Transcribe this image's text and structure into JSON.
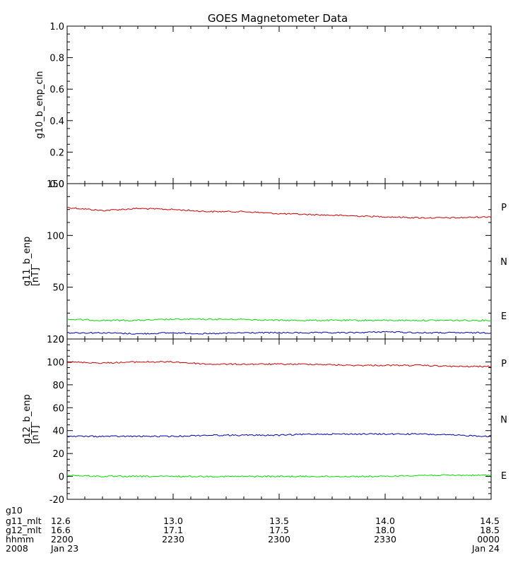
{
  "chart_data": {
    "title": "GOES Magnetometer Data",
    "type": "line",
    "panels": [
      {
        "ylabel": "g10_b_enp_cln",
        "yunit": "",
        "ylim": [
          0.0,
          1.0
        ],
        "yticks": [
          "0.0",
          "0.2",
          "0.4",
          "0.6",
          "0.8",
          "1.0"
        ],
        "series": []
      },
      {
        "ylabel": "g11_b_enp",
        "yunit": "[nT]",
        "ylim": [
          0,
          150
        ],
        "yticks": [
          "0",
          "50",
          "100",
          "150"
        ],
        "series": [
          {
            "name": "P",
            "color": "#cc0000",
            "x": [
              0,
              10,
              20,
              30,
              40,
              50,
              60,
              70,
              80,
              90,
              100,
              110,
              120
            ],
            "y": [
              127,
              124,
              126,
              125,
              123,
              123,
              121,
              120,
              119,
              118,
              117,
              117,
              118
            ]
          },
          {
            "name": "N",
            "color": "#00dd00",
            "x": [
              0,
              10,
              20,
              30,
              40,
              50,
              60,
              70,
              80,
              90,
              100,
              110,
              120
            ],
            "y": [
              19,
              18,
              18,
              19,
              19,
              19,
              18,
              18,
              18,
              18,
              18,
              18,
              18
            ]
          },
          {
            "name": "E",
            "color": "#0000aa",
            "x": [
              0,
              10,
              20,
              30,
              40,
              50,
              60,
              70,
              80,
              90,
              100,
              110,
              120
            ],
            "y": [
              6,
              6,
              5,
              6,
              5,
              6,
              6,
              6,
              6,
              7,
              6,
              6,
              6
            ]
          }
        ]
      },
      {
        "ylabel": "g12_b_enp",
        "yunit": "[nT]",
        "ylim": [
          -20,
          120
        ],
        "yticks": [
          "-20",
          "0",
          "20",
          "40",
          "60",
          "80",
          "100",
          "120"
        ],
        "series": [
          {
            "name": "P",
            "color": "#cc0000",
            "x": [
              0,
              10,
              20,
              30,
              40,
              50,
              60,
              70,
              80,
              90,
              100,
              110,
              120
            ],
            "y": [
              100,
              99,
              100,
              100,
              98,
              98,
              98,
              98,
              97,
              97,
              97,
              96,
              96
            ]
          },
          {
            "name": "N",
            "color": "#00dd00",
            "x": [
              0,
              10,
              20,
              30,
              40,
              50,
              60,
              70,
              80,
              90,
              100,
              110,
              120
            ],
            "y": [
              1,
              0,
              0,
              0,
              0,
              0,
              0,
              0,
              0,
              0,
              1,
              1,
              1
            ]
          },
          {
            "name": "E",
            "color": "#0000aa",
            "x": [
              0,
              10,
              20,
              30,
              40,
              50,
              60,
              70,
              80,
              90,
              100,
              110,
              120
            ],
            "y": [
              35,
              35,
              35,
              35,
              36,
              36,
              36,
              37,
              37,
              37,
              37,
              36,
              35
            ]
          }
        ]
      }
    ],
    "xlim": [
      0,
      120
    ],
    "x_units": "minutes after 2200 UT, 2008 Jan 23",
    "x_major_ticks": [
      0,
      30,
      60,
      90,
      120
    ],
    "x_label_rows": [
      {
        "label": "g10",
        "values": [
          "",
          "",
          "",
          "",
          ""
        ]
      },
      {
        "label": "g11_mlt",
        "values": [
          "12.6",
          "13.0",
          "13.5",
          "14.0",
          "14.5"
        ]
      },
      {
        "label": "g12_mlt",
        "values": [
          "16.6",
          "17.1",
          "17.5",
          "18.0",
          "18.5"
        ]
      },
      {
        "label": "hhmm",
        "values": [
          "2200",
          "2230",
          "2300",
          "2330",
          "0000"
        ]
      },
      {
        "label": "2008",
        "values": [
          "Jan 23",
          "",
          "",
          "",
          "Jan 24"
        ]
      }
    ]
  }
}
